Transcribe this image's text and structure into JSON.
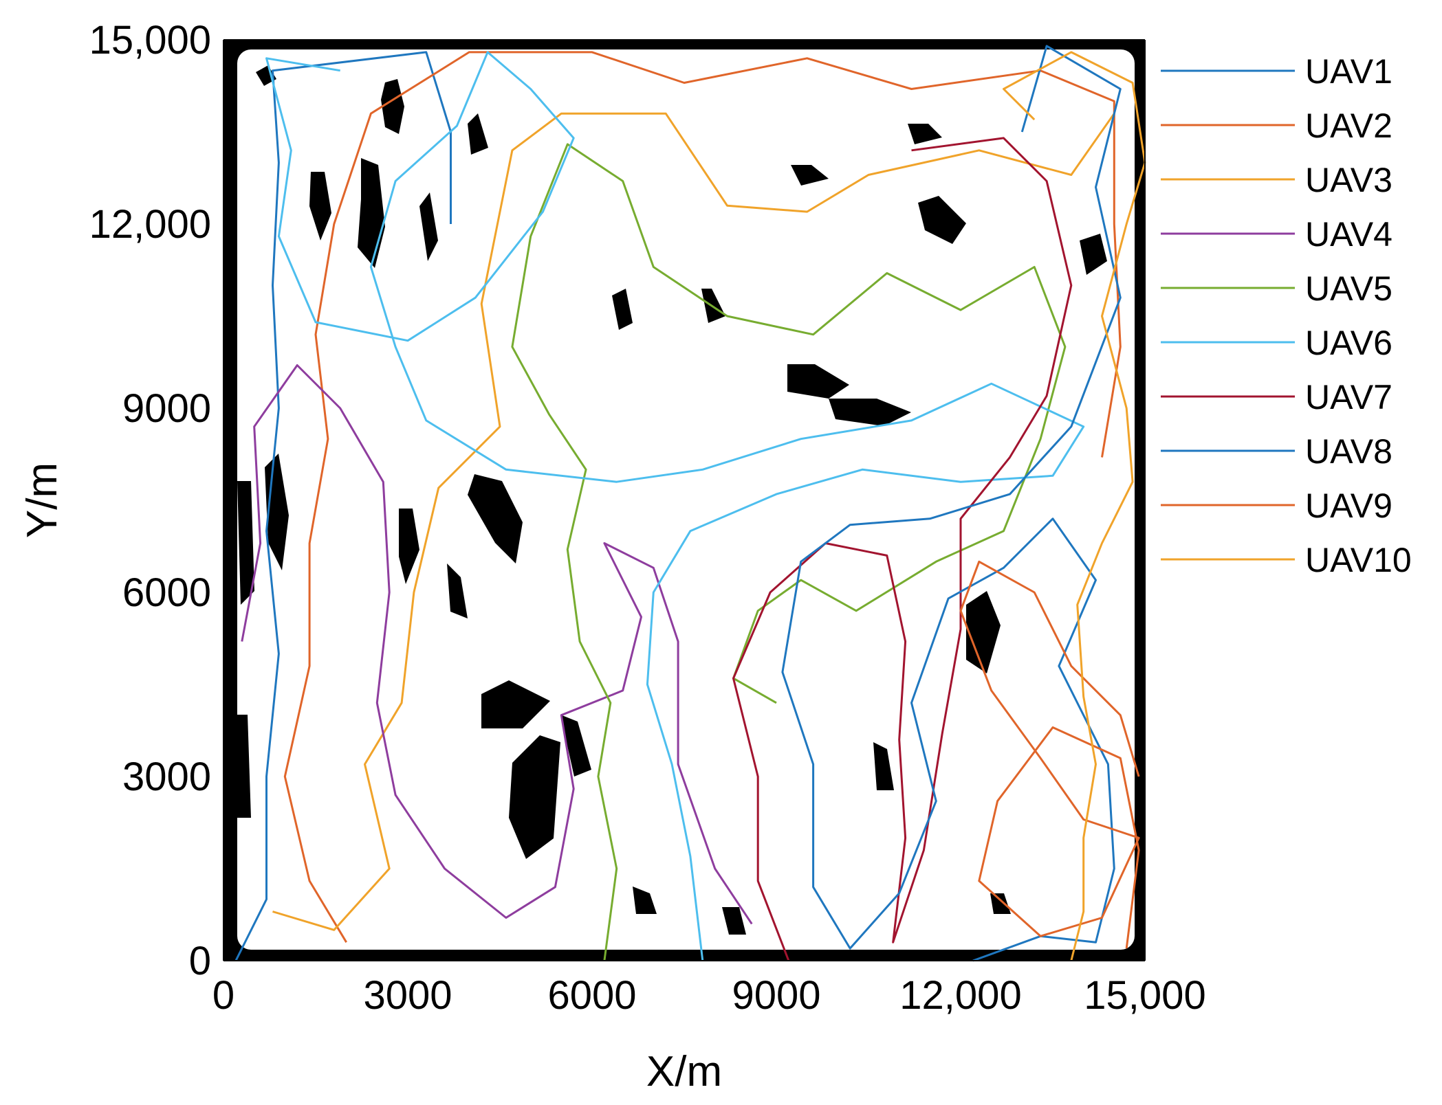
{
  "chart_data": {
    "type": "line",
    "title": "",
    "xlabel": "X/m",
    "ylabel": "Y/m",
    "xlim": [
      0,
      15000
    ],
    "ylim": [
      0,
      15000
    ],
    "x_ticks": [
      0,
      3000,
      6000,
      9000,
      12000,
      15000
    ],
    "y_ticks": [
      0,
      3000,
      6000,
      9000,
      12000,
      15000
    ],
    "x_tick_labels": [
      "0",
      "3000",
      "6000",
      "9000",
      "12,000",
      "15,000"
    ],
    "y_tick_labels": [
      "0",
      "3000",
      "6000",
      "9000",
      "12,000",
      "15,000"
    ],
    "grid": false,
    "legend_position": "outside-right",
    "background": "black obstacle map with white buffer zones",
    "series": [
      {
        "name": "UAV1",
        "color": "#1f77bf",
        "points": [
          [
            200,
            0
          ],
          [
            700,
            1000
          ],
          [
            700,
            3000
          ],
          [
            900,
            5000
          ],
          [
            700,
            7000
          ],
          [
            900,
            9000
          ],
          [
            800,
            11000
          ],
          [
            900,
            13000
          ],
          [
            800,
            14500
          ],
          [
            3300,
            14800
          ],
          [
            3700,
            13500
          ],
          [
            3700,
            12000
          ]
        ]
      },
      {
        "name": "UAV2",
        "color": "#e0652a",
        "points": [
          [
            2000,
            300
          ],
          [
            1400,
            1300
          ],
          [
            1000,
            3000
          ],
          [
            1400,
            4800
          ],
          [
            1400,
            6800
          ],
          [
            1700,
            8500
          ],
          [
            1500,
            10200
          ],
          [
            1800,
            12000
          ],
          [
            2400,
            13800
          ],
          [
            4000,
            14800
          ],
          [
            6000,
            14800
          ],
          [
            7500,
            14300
          ],
          [
            9500,
            14700
          ],
          [
            11200,
            14200
          ],
          [
            13300,
            14500
          ],
          [
            14500,
            14000
          ],
          [
            14500,
            12000
          ],
          [
            14600,
            10000
          ],
          [
            14300,
            8200
          ]
        ]
      },
      {
        "name": "UAV3",
        "color": "#f0a32a",
        "points": [
          [
            800,
            800
          ],
          [
            1800,
            500
          ],
          [
            2700,
            1500
          ],
          [
            2300,
            3200
          ],
          [
            2900,
            4200
          ],
          [
            3100,
            6000
          ],
          [
            3500,
            7700
          ],
          [
            4500,
            8700
          ],
          [
            4200,
            10700
          ],
          [
            4700,
            13200
          ],
          [
            5500,
            13800
          ],
          [
            7200,
            13800
          ],
          [
            8200,
            12300
          ],
          [
            9500,
            12200
          ],
          [
            10500,
            12800
          ],
          [
            12300,
            13200
          ],
          [
            13800,
            12800
          ],
          [
            14500,
            13800
          ]
        ]
      },
      {
        "name": "UAV4",
        "color": "#8e3d9e",
        "points": [
          [
            300,
            5200
          ],
          [
            600,
            6800
          ],
          [
            500,
            8700
          ],
          [
            1200,
            9700
          ],
          [
            1900,
            9000
          ],
          [
            2600,
            7800
          ],
          [
            2700,
            6000
          ],
          [
            2500,
            4200
          ],
          [
            2800,
            2700
          ],
          [
            3600,
            1500
          ],
          [
            4600,
            700
          ],
          [
            5400,
            1200
          ],
          [
            5700,
            2800
          ],
          [
            5500,
            4000
          ],
          [
            6500,
            4400
          ],
          [
            6800,
            5600
          ],
          [
            6200,
            6800
          ],
          [
            7000,
            6400
          ],
          [
            7400,
            5200
          ],
          [
            7400,
            3200
          ],
          [
            8000,
            1500
          ],
          [
            8600,
            600
          ]
        ]
      },
      {
        "name": "UAV5",
        "color": "#77ac30",
        "points": [
          [
            6200,
            0
          ],
          [
            6400,
            1500
          ],
          [
            6100,
            3000
          ],
          [
            6300,
            4200
          ],
          [
            5800,
            5200
          ],
          [
            5600,
            6700
          ],
          [
            5900,
            8000
          ],
          [
            5300,
            8900
          ],
          [
            4700,
            10000
          ],
          [
            5000,
            11800
          ],
          [
            5600,
            13300
          ],
          [
            6500,
            12700
          ],
          [
            7000,
            11300
          ],
          [
            8200,
            10500
          ],
          [
            9600,
            10200
          ],
          [
            10800,
            11200
          ],
          [
            12000,
            10600
          ],
          [
            13200,
            11300
          ],
          [
            13700,
            10000
          ],
          [
            13300,
            8500
          ],
          [
            12700,
            7000
          ],
          [
            11600,
            6500
          ],
          [
            10300,
            5700
          ],
          [
            9400,
            6200
          ],
          [
            8700,
            5700
          ],
          [
            8300,
            4600
          ],
          [
            9000,
            4200
          ]
        ]
      },
      {
        "name": "UAV6",
        "color": "#4dbeee",
        "points": [
          [
            7800,
            0
          ],
          [
            7600,
            1700
          ],
          [
            7300,
            3200
          ],
          [
            6900,
            4500
          ],
          [
            7000,
            6000
          ],
          [
            7600,
            7000
          ],
          [
            9000,
            7600
          ],
          [
            10400,
            8000
          ],
          [
            12000,
            7800
          ],
          [
            13500,
            7900
          ],
          [
            14000,
            8700
          ],
          [
            12500,
            9400
          ],
          [
            11200,
            8800
          ],
          [
            9400,
            8500
          ],
          [
            7800,
            8000
          ],
          [
            6400,
            7800
          ],
          [
            4600,
            8000
          ],
          [
            3300,
            8800
          ],
          [
            2800,
            10000
          ],
          [
            2400,
            11300
          ],
          [
            2800,
            12700
          ],
          [
            3800,
            13600
          ],
          [
            4300,
            14800
          ],
          [
            5000,
            14200
          ],
          [
            5700,
            13400
          ],
          [
            5200,
            12200
          ],
          [
            4100,
            10800
          ],
          [
            3000,
            10100
          ],
          [
            1500,
            10400
          ],
          [
            900,
            11800
          ],
          [
            1100,
            13200
          ],
          [
            700,
            14700
          ],
          [
            1900,
            14500
          ]
        ]
      },
      {
        "name": "UAV7",
        "color": "#a2142f",
        "points": [
          [
            9200,
            0
          ],
          [
            8700,
            1300
          ],
          [
            8700,
            3000
          ],
          [
            8300,
            4600
          ],
          [
            8900,
            6000
          ],
          [
            9800,
            6800
          ],
          [
            10800,
            6600
          ],
          [
            11100,
            5200
          ],
          [
            11000,
            3600
          ],
          [
            11100,
            2000
          ],
          [
            10900,
            300
          ],
          [
            11400,
            1800
          ],
          [
            11700,
            3700
          ],
          [
            12000,
            5400
          ],
          [
            12000,
            7200
          ],
          [
            12800,
            8200
          ],
          [
            13400,
            9200
          ],
          [
            13800,
            11000
          ],
          [
            13400,
            12700
          ],
          [
            12700,
            13400
          ],
          [
            11200,
            13200
          ]
        ]
      },
      {
        "name": "UAV8",
        "color": "#1f77bf",
        "points": [
          [
            12200,
            0
          ],
          [
            13300,
            400
          ],
          [
            14200,
            300
          ],
          [
            14500,
            1500
          ],
          [
            14400,
            3200
          ],
          [
            13600,
            4800
          ],
          [
            14200,
            6200
          ],
          [
            13500,
            7200
          ],
          [
            12700,
            6400
          ],
          [
            11800,
            5900
          ],
          [
            11200,
            4200
          ],
          [
            11600,
            2600
          ],
          [
            11000,
            1100
          ],
          [
            10200,
            200
          ],
          [
            9600,
            1200
          ],
          [
            9600,
            3200
          ],
          [
            9100,
            4700
          ],
          [
            9400,
            6500
          ],
          [
            10200,
            7100
          ],
          [
            11500,
            7200
          ],
          [
            12800,
            7600
          ],
          [
            13800,
            8700
          ],
          [
            14600,
            10800
          ],
          [
            14200,
            12600
          ],
          [
            14600,
            14200
          ],
          [
            13400,
            14900
          ],
          [
            13000,
            13500
          ]
        ]
      },
      {
        "name": "UAV9",
        "color": "#e0652a",
        "points": [
          [
            14700,
            200
          ],
          [
            14900,
            1800
          ],
          [
            14600,
            3300
          ],
          [
            13500,
            3800
          ],
          [
            12600,
            2600
          ],
          [
            12300,
            1300
          ],
          [
            13300,
            400
          ],
          [
            14300,
            700
          ],
          [
            14900,
            2000
          ],
          [
            14000,
            2300
          ],
          [
            13300,
            3300
          ],
          [
            12500,
            4400
          ],
          [
            12000,
            5700
          ],
          [
            12300,
            6500
          ],
          [
            13200,
            6000
          ],
          [
            13800,
            4800
          ],
          [
            14600,
            4000
          ],
          [
            14900,
            3000
          ]
        ]
      },
      {
        "name": "UAV10",
        "color": "#f0a32a",
        "points": [
          [
            13800,
            0
          ],
          [
            14000,
            800
          ],
          [
            14000,
            2000
          ],
          [
            14200,
            3200
          ],
          [
            14000,
            4300
          ],
          [
            13900,
            5800
          ],
          [
            14300,
            6800
          ],
          [
            14800,
            7800
          ],
          [
            14700,
            9000
          ],
          [
            14300,
            10500
          ],
          [
            14700,
            12000
          ],
          [
            15000,
            13000
          ],
          [
            14800,
            14300
          ],
          [
            13800,
            14800
          ],
          [
            12700,
            14200
          ],
          [
            13200,
            13700
          ]
        ]
      }
    ],
    "legend_entries": [
      "UAV1",
      "UAV2",
      "UAV3",
      "UAV4",
      "UAV5",
      "UAV6",
      "UAV7",
      "UAV8",
      "UAV9",
      "UAV10"
    ]
  }
}
